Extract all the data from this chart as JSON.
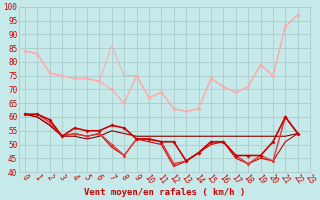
{
  "xlabel": "Vent moyen/en rafales ( km/h )",
  "xlim": [
    -0.5,
    23
  ],
  "ylim": [
    40,
    100
  ],
  "yticks": [
    40,
    45,
    50,
    55,
    60,
    65,
    70,
    75,
    80,
    85,
    90,
    95,
    100
  ],
  "xticks": [
    0,
    1,
    2,
    3,
    4,
    5,
    6,
    7,
    8,
    9,
    10,
    11,
    12,
    13,
    14,
    15,
    16,
    17,
    18,
    19,
    20,
    21,
    22,
    23
  ],
  "bg_color": "#c6eaea",
  "grid_color": "#aacccc",
  "lines": [
    {
      "x": [
        0,
        1,
        2,
        3,
        4,
        5,
        6,
        7,
        8,
        9,
        10,
        11,
        12,
        13,
        14,
        15,
        16,
        17,
        18,
        19,
        20,
        21,
        22
      ],
      "y": [
        84,
        83,
        76,
        75,
        74,
        74,
        73,
        70,
        65,
        75,
        67,
        69,
        63,
        62,
        63,
        74,
        71,
        69,
        71,
        79,
        75,
        93,
        97
      ],
      "color": "#ffaaaa",
      "lw": 1.0,
      "marker": "D",
      "ms": 2.0,
      "zorder": 3
    },
    {
      "x": [
        0,
        1,
        2,
        3,
        4,
        5,
        6,
        7,
        8,
        9,
        10,
        11,
        12,
        13,
        14,
        15,
        16,
        17,
        18,
        19,
        20,
        21,
        22
      ],
      "y": [
        84,
        83,
        76,
        75,
        74,
        74,
        73,
        86,
        75,
        75,
        67,
        69,
        63,
        62,
        63,
        74,
        71,
        69,
        71,
        79,
        75,
        93,
        97
      ],
      "color": "#ffaaaa",
      "lw": 0.8,
      "marker": null,
      "ms": 0,
      "zorder": 2
    },
    {
      "x": [
        0,
        1,
        2,
        3,
        4,
        5,
        6,
        7,
        8,
        9,
        10,
        11,
        12,
        13,
        14,
        15,
        16,
        17,
        18,
        19,
        20,
        21,
        22
      ],
      "y": [
        61,
        61,
        59,
        53,
        56,
        55,
        55,
        57,
        56,
        52,
        52,
        51,
        51,
        44,
        47,
        51,
        51,
        46,
        46,
        46,
        51,
        60,
        54
      ],
      "color": "#cc0000",
      "lw": 1.2,
      "marker": "D",
      "ms": 2.0,
      "zorder": 5
    },
    {
      "x": [
        0,
        1,
        2,
        3,
        4,
        5,
        6,
        7,
        8,
        9,
        10,
        11,
        12,
        13,
        14,
        15,
        16,
        17,
        18,
        19,
        20,
        21,
        22
      ],
      "y": [
        61,
        61,
        58,
        53,
        54,
        53,
        54,
        50,
        46,
        52,
        52,
        51,
        43,
        44,
        47,
        51,
        51,
        46,
        43,
        46,
        44,
        60,
        54
      ],
      "color": "#ee3333",
      "lw": 1.0,
      "marker": "D",
      "ms": 2.0,
      "zorder": 4
    },
    {
      "x": [
        0,
        1,
        2,
        3,
        4,
        5,
        6,
        7,
        8,
        9,
        10,
        11,
        12,
        13,
        14,
        15,
        16,
        17,
        18,
        19,
        20,
        21,
        22
      ],
      "y": [
        61,
        60,
        57,
        53,
        54,
        53,
        54,
        49,
        46,
        52,
        51,
        50,
        42,
        44,
        47,
        50,
        51,
        45,
        43,
        45,
        44,
        51,
        54
      ],
      "color": "#cc0000",
      "lw": 0.8,
      "marker": null,
      "ms": 0,
      "zorder": 2
    },
    {
      "x": [
        0,
        1,
        2,
        3,
        4,
        5,
        6,
        7,
        8,
        9,
        10,
        11,
        12,
        13,
        14,
        15,
        16,
        17,
        18,
        19,
        20,
        21,
        22
      ],
      "y": [
        61,
        60,
        57,
        53,
        53,
        52,
        53,
        55,
        54,
        53,
        53,
        53,
        53,
        53,
        53,
        53,
        53,
        53,
        53,
        53,
        53,
        53,
        54
      ],
      "color": "#880000",
      "lw": 0.8,
      "marker": null,
      "ms": 0,
      "zorder": 2
    }
  ],
  "tick_label_fontsize": 5.5,
  "xlabel_fontsize": 6.5,
  "xlabel_color": "#cc0000",
  "tick_label_color": "#cc0000",
  "xtick_rotation": -55
}
